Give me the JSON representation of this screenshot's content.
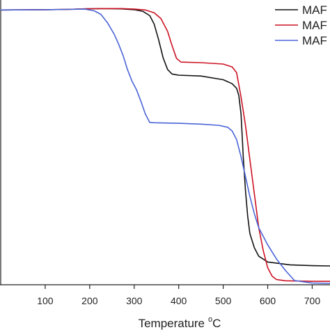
{
  "chart_data": {
    "type": "line",
    "xlabel": "Temperature",
    "xlabel_unit_sup": "o",
    "xlabel_unit": "C",
    "xlim": [
      0,
      740
    ],
    "ylim": [
      0,
      1.0
    ],
    "x_ticks": [
      100,
      200,
      300,
      400,
      500,
      600,
      700
    ],
    "grid": false,
    "legend_position": "top-right",
    "series": [
      {
        "name": "MAF",
        "color": "#111111",
        "x": [
          0,
          100,
          150,
          190,
          230,
          270,
          300,
          320,
          335,
          345,
          355,
          365,
          375,
          385,
          400,
          450,
          500,
          520,
          530,
          535,
          540,
          545,
          550,
          555,
          560,
          570,
          580,
          600,
          650,
          700,
          740
        ],
        "y": [
          0.965,
          0.966,
          0.967,
          0.969,
          0.97,
          0.969,
          0.966,
          0.96,
          0.945,
          0.915,
          0.86,
          0.797,
          0.756,
          0.74,
          0.736,
          0.733,
          0.72,
          0.706,
          0.69,
          0.665,
          0.6,
          0.45,
          0.33,
          0.24,
          0.18,
          0.13,
          0.1,
          0.08,
          0.07,
          0.067,
          0.066
        ]
      },
      {
        "name": "MAF",
        "color": "#cc1122",
        "x": [
          0,
          100,
          150,
          190,
          230,
          270,
          300,
          325,
          345,
          360,
          375,
          385,
          395,
          405,
          450,
          500,
          520,
          530,
          540,
          550,
          560,
          570,
          580,
          590,
          600,
          610,
          620,
          640,
          700,
          740
        ],
        "y": [
          0.965,
          0.966,
          0.967,
          0.969,
          0.97,
          0.97,
          0.968,
          0.965,
          0.955,
          0.935,
          0.89,
          0.84,
          0.795,
          0.782,
          0.78,
          0.775,
          0.765,
          0.745,
          0.66,
          0.56,
          0.44,
          0.32,
          0.2,
          0.12,
          0.06,
          0.03,
          0.018,
          0.014,
          0.012,
          0.012
        ]
      },
      {
        "name": "MAF",
        "color": "#4a64d8",
        "x": [
          0,
          100,
          150,
          190,
          210,
          225,
          240,
          255,
          265,
          275,
          285,
          295,
          305,
          315,
          325,
          335,
          345,
          400,
          450,
          490,
          510,
          520,
          530,
          540,
          550,
          560,
          570,
          580,
          600,
          620,
          640,
          660,
          700,
          740
        ],
        "y": [
          0.965,
          0.966,
          0.967,
          0.968,
          0.962,
          0.95,
          0.92,
          0.88,
          0.845,
          0.805,
          0.755,
          0.715,
          0.685,
          0.645,
          0.6,
          0.57,
          0.569,
          0.567,
          0.564,
          0.56,
          0.553,
          0.54,
          0.51,
          0.45,
          0.38,
          0.31,
          0.25,
          0.2,
          0.14,
          0.09,
          0.05,
          0.015,
          0.006,
          0.005
        ]
      }
    ]
  }
}
